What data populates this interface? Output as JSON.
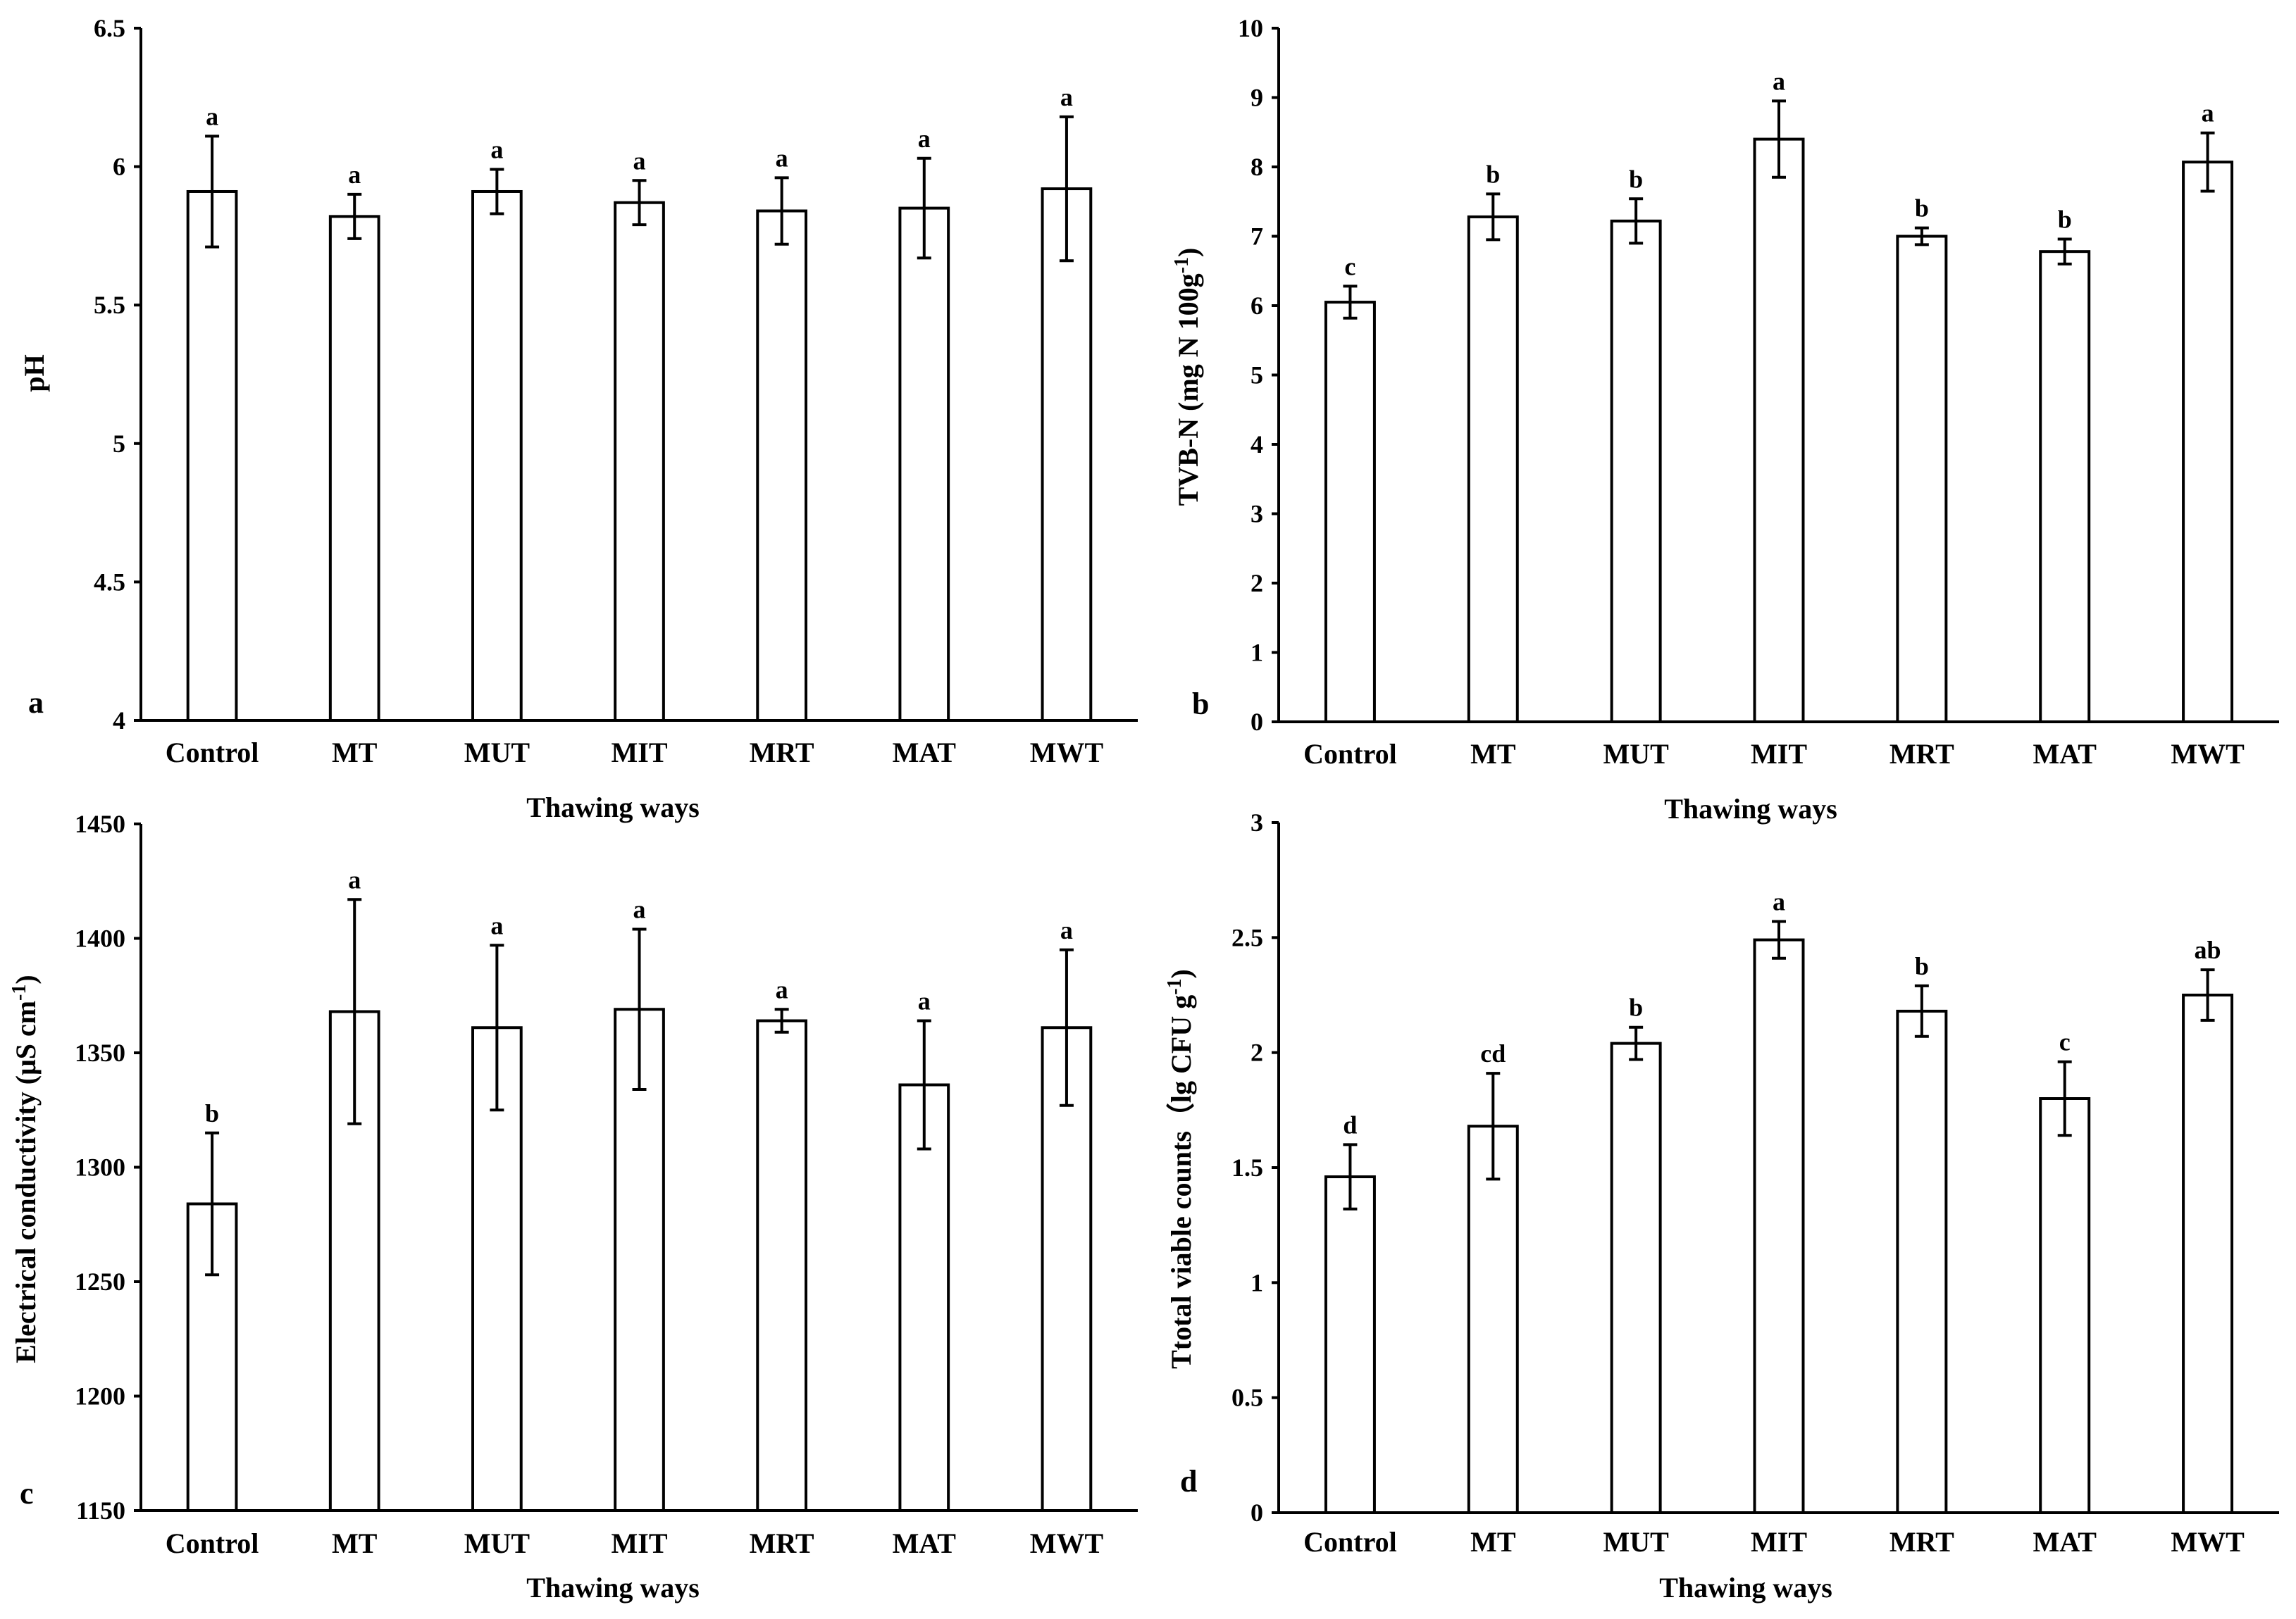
{
  "chart_data": [
    {
      "panel": "a",
      "type": "bar",
      "categories": [
        "Control",
        "MT",
        "MUT",
        "MIT",
        "MRT",
        "MAT",
        "MWT"
      ],
      "values": [
        5.91,
        5.82,
        5.91,
        5.87,
        5.84,
        5.85,
        5.92
      ],
      "errors": [
        0.2,
        0.08,
        0.08,
        0.08,
        0.12,
        0.18,
        0.26
      ],
      "significance": [
        "a",
        "a",
        "a",
        "a",
        "a",
        "a",
        "a"
      ],
      "xlabel": "Thawing ways",
      "ylabel": "pH",
      "ylim": [
        4,
        6.5
      ],
      "yticks": [
        "4",
        "4.5",
        "5",
        "5.5",
        "6",
        "6.5"
      ]
    },
    {
      "panel": "b",
      "type": "bar",
      "categories": [
        "Control",
        "MT",
        "MUT",
        "MIT",
        "MRT",
        "MAT",
        "MWT"
      ],
      "values": [
        6.05,
        7.28,
        7.22,
        8.4,
        7.0,
        6.78,
        8.07
      ],
      "errors": [
        0.23,
        0.33,
        0.32,
        0.55,
        0.12,
        0.18,
        0.42
      ],
      "significance": [
        "c",
        "b",
        "b",
        "a",
        "b",
        "b",
        "a"
      ],
      "xlabel": "Thawing ways",
      "ylabel_main": "TVB-N (mg N 100g",
      "ylabel_sup": "-1",
      "ylabel_end": ")",
      "ylim": [
        0,
        10
      ],
      "yticks": [
        "0",
        "1",
        "2",
        "3",
        "4",
        "5",
        "6",
        "7",
        "8",
        "9",
        "10"
      ]
    },
    {
      "panel": "c",
      "type": "bar",
      "categories": [
        "Control",
        "MT",
        "MUT",
        "MIT",
        "MRT",
        "MAT",
        "MWT"
      ],
      "values": [
        1284,
        1368,
        1361,
        1369,
        1364,
        1336,
        1361
      ],
      "errors": [
        31,
        49,
        36,
        35,
        5,
        28,
        34
      ],
      "significance": [
        "b",
        "a",
        "a",
        "a",
        "a",
        "a",
        "a"
      ],
      "xlabel": "Thawing ways",
      "ylabel_main": "Electrical conductivity (μS cm",
      "ylabel_sup": "-1",
      "ylabel_end": ")",
      "ylim": [
        1150,
        1450
      ],
      "yticks": [
        "1150",
        "1200",
        "1250",
        "1300",
        "1350",
        "1400",
        "1450"
      ]
    },
    {
      "panel": "d",
      "type": "bar",
      "categories": [
        "Control",
        "MT",
        "MUT",
        "MIT",
        "MRT",
        "MAT",
        "MWT"
      ],
      "values": [
        1.46,
        1.68,
        2.04,
        2.49,
        2.18,
        1.8,
        2.25
      ],
      "errors": [
        0.14,
        0.23,
        0.07,
        0.08,
        0.11,
        0.16,
        0.11
      ],
      "significance": [
        "d",
        "cd",
        "b",
        "a",
        "b",
        "c",
        "ab"
      ],
      "xlabel": "Thawing ways",
      "ylabel_main": "Ttotal viable counts（lg CFU g",
      "ylabel_sup": "-1",
      "ylabel_end": ")",
      "ylim": [
        0,
        3
      ],
      "yticks": [
        "0",
        "0.5",
        "1",
        "1.5",
        "2",
        "2.5",
        "3"
      ]
    }
  ]
}
